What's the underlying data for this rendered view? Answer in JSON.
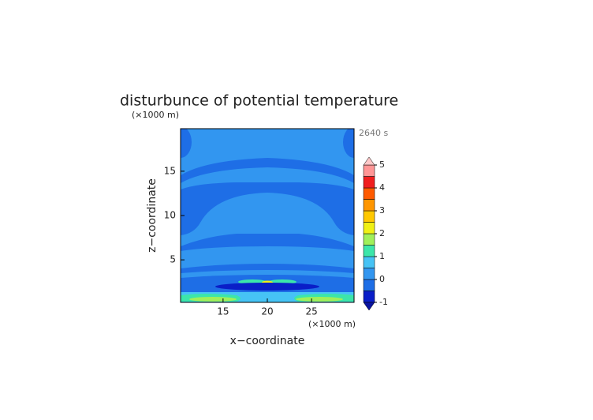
{
  "chart_data": {
    "type": "contour",
    "title": "disturbunce of potential temperature",
    "time_label": "2640 s",
    "x_label": "x−coordinate",
    "y_label": "z−coordinate",
    "x_unit": "(×1000 m)",
    "y_unit": "(×1000 m)",
    "xlim": [
      10.2,
      29.8
    ],
    "ylim": [
      0.2,
      19.8
    ],
    "xticks": [
      15,
      20,
      25
    ],
    "yticks": [
      5,
      10,
      15
    ],
    "levels": [
      -1,
      -0.5,
      0,
      0.5,
      1,
      1.5,
      2,
      2.5,
      3,
      3.5,
      4,
      4.5,
      5
    ],
    "colors": [
      "#0a1ec8",
      "#1e6ee6",
      "#3296f0",
      "#46c3f5",
      "#3ce6aa",
      "#a0f05a",
      "#f0f014",
      "#ffc800",
      "#ff9600",
      "#ff5a00",
      "#f01e1e",
      "#ff9696"
    ],
    "under_color": "#0a14a0",
    "over_color": "#ffc8c8",
    "colorbar_ticks": [
      -1,
      0,
      1,
      2,
      3,
      4,
      5
    ]
  }
}
